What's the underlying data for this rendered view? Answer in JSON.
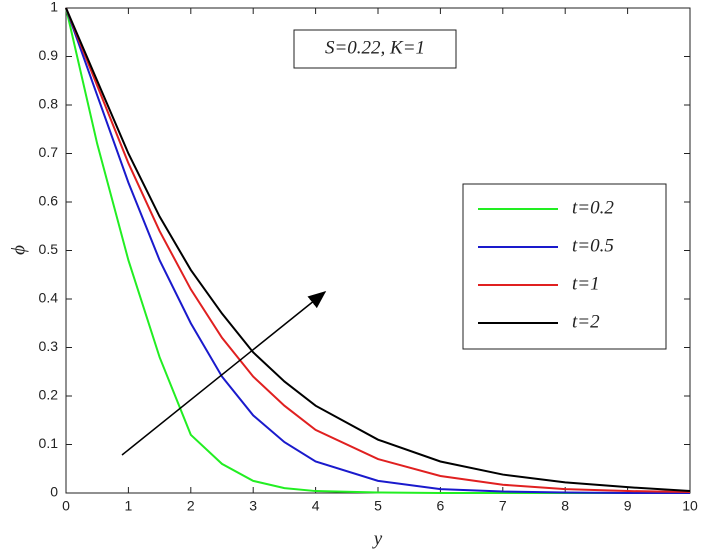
{
  "chart_data": {
    "type": "line",
    "annotation": "S=0.22, K=1",
    "x_label": "y",
    "y_label": "ϕ",
    "x": [
      0,
      0.5,
      1,
      1.5,
      2,
      2.5,
      3,
      3.5,
      4,
      5,
      6,
      7,
      8,
      9,
      10
    ],
    "series": [
      {
        "name": "t=0.2",
        "color": "#22ee22",
        "values": [
          1,
          0.72,
          0.48,
          0.28,
          0.12,
          0.06,
          0.025,
          0.01,
          0.004,
          0.001,
          0,
          0,
          0,
          0,
          0
        ]
      },
      {
        "name": "t=0.5",
        "color": "#1a1acc",
        "values": [
          1,
          0.82,
          0.64,
          0.48,
          0.35,
          0.24,
          0.16,
          0.105,
          0.065,
          0.025,
          0.008,
          0.003,
          0.001,
          0,
          0
        ]
      },
      {
        "name": "t=1",
        "color": "#e02020",
        "values": [
          1,
          0.84,
          0.68,
          0.54,
          0.42,
          0.32,
          0.24,
          0.18,
          0.13,
          0.07,
          0.035,
          0.017,
          0.008,
          0.004,
          0.002
        ]
      },
      {
        "name": "t=2",
        "color": "#000000",
        "values": [
          1,
          0.85,
          0.7,
          0.57,
          0.46,
          0.37,
          0.29,
          0.23,
          0.18,
          0.11,
          0.065,
          0.038,
          0.022,
          0.012,
          0.004
        ]
      }
    ],
    "xlim": [
      0,
      10
    ],
    "ylim": [
      0,
      1
    ],
    "xticks": [
      0,
      1,
      2,
      3,
      4,
      5,
      6,
      7,
      8,
      9,
      10
    ],
    "yticks": [
      0,
      0.1,
      0.2,
      0.3,
      0.4,
      0.5,
      0.6,
      0.7,
      0.8,
      0.9,
      1
    ],
    "legend": "right"
  }
}
